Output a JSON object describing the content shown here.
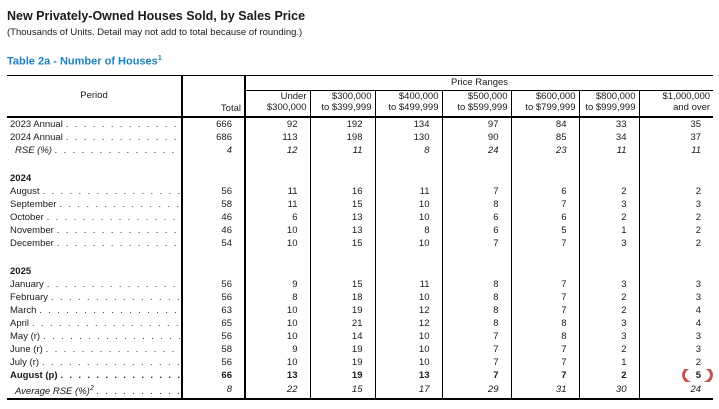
{
  "page": {
    "title": "New Privately-Owned Houses Sold, by Sales Price",
    "subtitle": "(Thousands of Units.  Detail may not add to total because of rounding.)",
    "table_label": "Table 2a - Number of Houses",
    "table_label_sup": "1"
  },
  "colors": {
    "table_label_blue": "#1E83C4",
    "annotation_red": "#C9504E",
    "text": "#1a1a1a"
  },
  "table": {
    "header": {
      "period": "Period",
      "total": "Total",
      "price_ranges": "Price Ranges",
      "price_columns": [
        [
          "Under",
          "$300,000"
        ],
        [
          "$300,000",
          "to $399,999"
        ],
        [
          "$400,000",
          "to $499,999"
        ],
        [
          "$500,000",
          "to $599,999"
        ],
        [
          "$600,000",
          "to $799,999"
        ],
        [
          "$800,000",
          "to $999,999"
        ],
        [
          "$1,000,000",
          "and over"
        ]
      ]
    },
    "rows": [
      {
        "label": "2023 Annual",
        "style": "normal",
        "values": [
          666,
          92,
          192,
          134,
          97,
          84,
          33,
          35
        ]
      },
      {
        "label": "2024 Annual",
        "style": "normal",
        "values": [
          686,
          113,
          198,
          130,
          90,
          85,
          34,
          37
        ]
      },
      {
        "label": "RSE (%)",
        "style": "italic",
        "values": [
          4,
          12,
          11,
          8,
          24,
          23,
          11,
          11
        ]
      },
      {
        "style": "blank"
      },
      {
        "label": "2024",
        "style": "section"
      },
      {
        "label": "August",
        "style": "normal",
        "values": [
          56,
          11,
          16,
          11,
          7,
          6,
          2,
          2
        ]
      },
      {
        "label": "September",
        "style": "normal",
        "values": [
          58,
          11,
          15,
          10,
          8,
          7,
          3,
          3
        ]
      },
      {
        "label": "October",
        "style": "normal",
        "values": [
          46,
          6,
          13,
          10,
          6,
          6,
          2,
          2
        ]
      },
      {
        "label": "November",
        "style": "normal",
        "values": [
          46,
          10,
          13,
          8,
          6,
          5,
          1,
          2
        ]
      },
      {
        "label": "December",
        "style": "normal",
        "values": [
          54,
          10,
          15,
          10,
          7,
          7,
          3,
          2
        ]
      },
      {
        "style": "blank"
      },
      {
        "label": "2025",
        "style": "section"
      },
      {
        "label": "January",
        "style": "normal",
        "values": [
          56,
          9,
          15,
          11,
          8,
          7,
          3,
          3
        ]
      },
      {
        "label": "February",
        "style": "normal",
        "values": [
          56,
          8,
          18,
          10,
          8,
          7,
          2,
          3
        ]
      },
      {
        "label": "March",
        "style": "normal",
        "values": [
          63,
          10,
          19,
          12,
          8,
          7,
          2,
          4
        ]
      },
      {
        "label": "April",
        "style": "normal",
        "values": [
          65,
          10,
          21,
          12,
          8,
          8,
          3,
          4
        ]
      },
      {
        "label": "May (r)",
        "style": "normal",
        "values": [
          56,
          10,
          14,
          10,
          7,
          8,
          3,
          3
        ]
      },
      {
        "label": "June (r)",
        "style": "normal",
        "values": [
          58,
          9,
          19,
          10,
          7,
          7,
          2,
          3
        ]
      },
      {
        "label": "July (r)",
        "style": "normal",
        "values": [
          56,
          10,
          19,
          10,
          7,
          7,
          1,
          2
        ]
      },
      {
        "label": "August (p)",
        "style": "bold",
        "values": [
          66,
          13,
          19,
          13,
          7,
          7,
          2,
          5
        ],
        "circled_value_index": 7
      },
      {
        "label": "Average RSE (%)",
        "label_sup": "2",
        "style": "italic",
        "values": [
          8,
          22,
          15,
          17,
          29,
          31,
          30,
          24
        ]
      }
    ]
  },
  "annotation": {
    "type": "red-circle",
    "circled_row": "August (p)",
    "circled_column": "$1,000,000 and over",
    "circled_value": 5
  }
}
